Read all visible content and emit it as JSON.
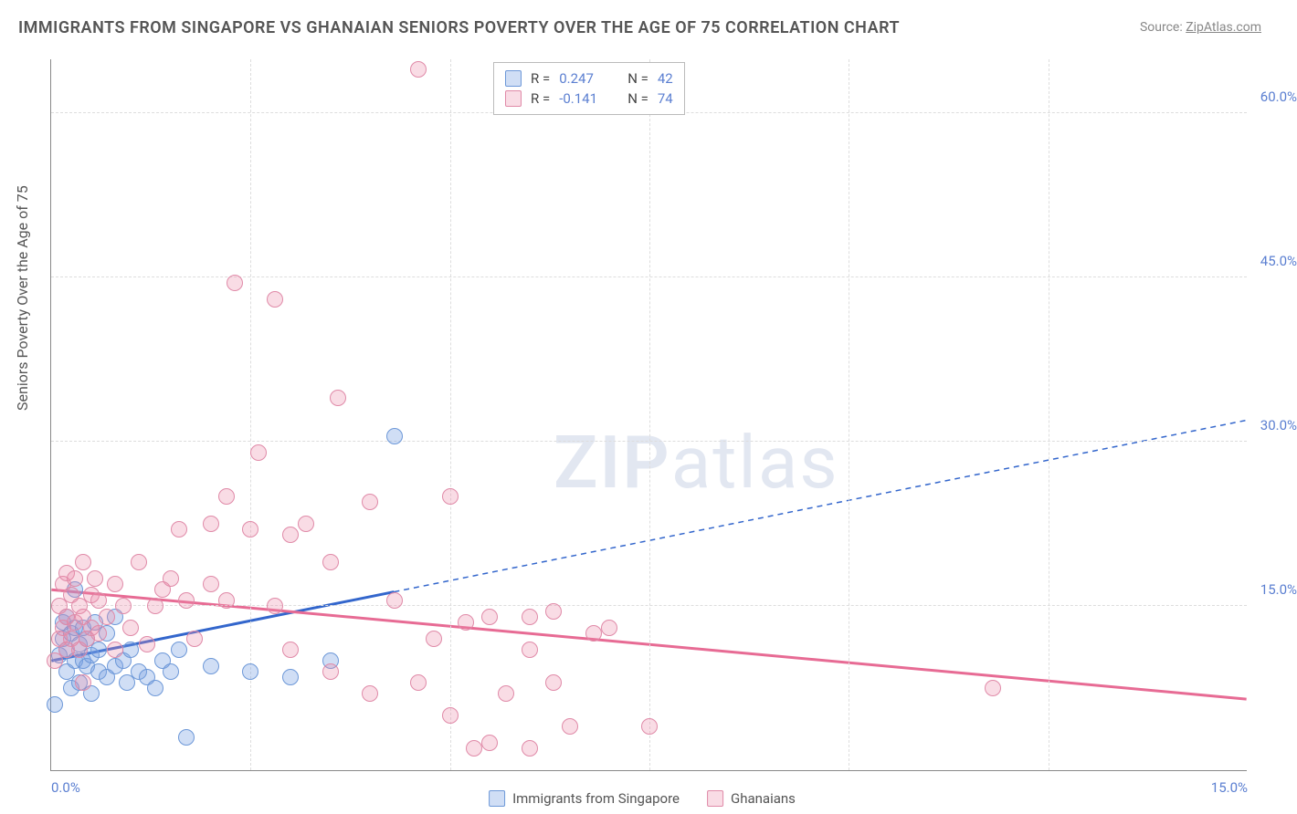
{
  "title": "IMMIGRANTS FROM SINGAPORE VS GHANAIAN SENIORS POVERTY OVER THE AGE OF 75 CORRELATION CHART",
  "source_label": "Source:",
  "source_name": "ZipAtlas.com",
  "y_axis_title": "Seniors Poverty Over the Age of 75",
  "watermark_text_1": "ZIP",
  "watermark_text_2": "atlas",
  "chart": {
    "type": "scatter",
    "x_min": 0.0,
    "x_max": 15.0,
    "y_min": 0.0,
    "y_max": 65.0,
    "x_ticks": [
      0.0,
      15.0
    ],
    "x_tick_labels": [
      "0.0%",
      "15.0%"
    ],
    "y_ticks": [
      15.0,
      30.0,
      45.0,
      60.0
    ],
    "y_tick_labels": [
      "15.0%",
      "30.0%",
      "45.0%",
      "60.0%"
    ],
    "vgrid": [
      2.5,
      5.0,
      7.5,
      10.0,
      12.5
    ],
    "grid_color": "#dddddd",
    "axis_color": "#888888",
    "tick_label_color": "#5b7fd1",
    "tick_fontsize": 15,
    "background": "#ffffff",
    "point_radius": 9,
    "point_stroke_width": 1.5,
    "series": [
      {
        "name": "Immigrants from Singapore",
        "label": "Immigrants from Singapore",
        "fill": "rgba(120,160,225,0.35)",
        "stroke": "#6d98d8",
        "line_color": "#3366cc",
        "R": "0.247",
        "N": "42",
        "trend": {
          "y_at_xmin": 10.0,
          "y_at_xmax": 32.0,
          "solid_until_x": 4.3
        },
        "points": [
          [
            0.05,
            6.0
          ],
          [
            0.1,
            10.5
          ],
          [
            0.15,
            12.0
          ],
          [
            0.15,
            13.5
          ],
          [
            0.2,
            9.0
          ],
          [
            0.2,
            11.0
          ],
          [
            0.2,
            14.0
          ],
          [
            0.25,
            7.5
          ],
          [
            0.25,
            12.5
          ],
          [
            0.3,
            10.0
          ],
          [
            0.3,
            13.0
          ],
          [
            0.3,
            16.5
          ],
          [
            0.35,
            8.0
          ],
          [
            0.35,
            11.5
          ],
          [
            0.4,
            10.0
          ],
          [
            0.4,
            13.0
          ],
          [
            0.45,
            9.5
          ],
          [
            0.45,
            12.0
          ],
          [
            0.5,
            7.0
          ],
          [
            0.5,
            10.5
          ],
          [
            0.55,
            13.5
          ],
          [
            0.6,
            9.0
          ],
          [
            0.6,
            11.0
          ],
          [
            0.7,
            8.5
          ],
          [
            0.7,
            12.5
          ],
          [
            0.8,
            9.5
          ],
          [
            0.8,
            14.0
          ],
          [
            0.9,
            10.0
          ],
          [
            0.95,
            8.0
          ],
          [
            1.0,
            11.0
          ],
          [
            1.1,
            9.0
          ],
          [
            1.2,
            8.5
          ],
          [
            1.3,
            7.5
          ],
          [
            1.4,
            10.0
          ],
          [
            1.5,
            9.0
          ],
          [
            1.6,
            11.0
          ],
          [
            1.7,
            3.0
          ],
          [
            2.0,
            9.5
          ],
          [
            2.5,
            9.0
          ],
          [
            3.0,
            8.5
          ],
          [
            3.5,
            10.0
          ],
          [
            4.3,
            30.5
          ]
        ]
      },
      {
        "name": "Ghanaians",
        "label": "Ghanaians",
        "fill": "rgba(235,140,170,0.30)",
        "stroke": "#e08aa8",
        "line_color": "#e76b94",
        "R": "-0.141",
        "N": "74",
        "trend": {
          "y_at_xmin": 16.5,
          "y_at_xmax": 6.5,
          "solid_until_x": 15.0
        },
        "points": [
          [
            0.1,
            12.0
          ],
          [
            0.1,
            15.0
          ],
          [
            0.15,
            13.0
          ],
          [
            0.15,
            17.0
          ],
          [
            0.2,
            11.0
          ],
          [
            0.2,
            14.0
          ],
          [
            0.2,
            18.0
          ],
          [
            0.25,
            12.0
          ],
          [
            0.25,
            16.0
          ],
          [
            0.3,
            13.5
          ],
          [
            0.3,
            17.5
          ],
          [
            0.35,
            11.0
          ],
          [
            0.35,
            15.0
          ],
          [
            0.4,
            14.0
          ],
          [
            0.4,
            19.0
          ],
          [
            0.45,
            12.0
          ],
          [
            0.5,
            13.0
          ],
          [
            0.5,
            16.0
          ],
          [
            0.55,
            17.5
          ],
          [
            0.6,
            12.5
          ],
          [
            0.6,
            15.5
          ],
          [
            0.7,
            14.0
          ],
          [
            0.8,
            11.0
          ],
          [
            0.8,
            17.0
          ],
          [
            0.9,
            15.0
          ],
          [
            1.0,
            13.0
          ],
          [
            1.1,
            19.0
          ],
          [
            1.2,
            11.5
          ],
          [
            1.3,
            15.0
          ],
          [
            1.4,
            16.5
          ],
          [
            1.5,
            17.5
          ],
          [
            1.6,
            22.0
          ],
          [
            1.7,
            15.5
          ],
          [
            1.8,
            12.0
          ],
          [
            2.0,
            22.5
          ],
          [
            2.0,
            17.0
          ],
          [
            2.2,
            15.5
          ],
          [
            2.2,
            25.0
          ],
          [
            2.3,
            44.5
          ],
          [
            2.5,
            22.0
          ],
          [
            2.6,
            29.0
          ],
          [
            2.8,
            15.0
          ],
          [
            2.8,
            43.0
          ],
          [
            3.0,
            21.5
          ],
          [
            3.0,
            11.0
          ],
          [
            3.2,
            22.5
          ],
          [
            3.5,
            9.0
          ],
          [
            3.5,
            19.0
          ],
          [
            3.6,
            34.0
          ],
          [
            4.0,
            7.0
          ],
          [
            4.0,
            24.5
          ],
          [
            4.3,
            15.5
          ],
          [
            4.6,
            64.0
          ],
          [
            4.6,
            8.0
          ],
          [
            4.8,
            12.0
          ],
          [
            5.0,
            25.0
          ],
          [
            5.0,
            5.0
          ],
          [
            5.2,
            13.5
          ],
          [
            5.3,
            2.0
          ],
          [
            5.5,
            2.5
          ],
          [
            5.5,
            14.0
          ],
          [
            5.7,
            7.0
          ],
          [
            6.0,
            11.0
          ],
          [
            6.0,
            2.0
          ],
          [
            6.0,
            14.0
          ],
          [
            6.3,
            14.5
          ],
          [
            6.3,
            8.0
          ],
          [
            6.5,
            4.0
          ],
          [
            6.8,
            12.5
          ],
          [
            7.0,
            13.0
          ],
          [
            7.5,
            4.0
          ],
          [
            11.8,
            7.5
          ],
          [
            0.05,
            10.0
          ],
          [
            0.4,
            8.0
          ]
        ]
      }
    ]
  }
}
